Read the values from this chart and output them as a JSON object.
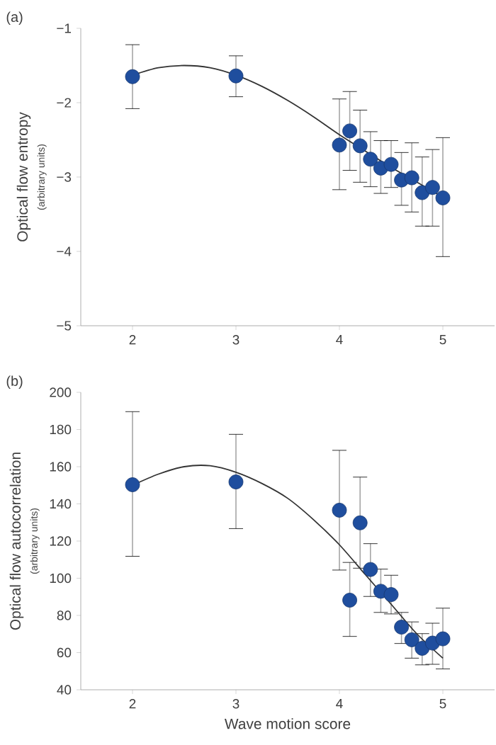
{
  "chart_data": [
    {
      "type": "scatter",
      "ylabel": "Optical flow entropy",
      "annotations": [
        "(a)",
        "(arbitrary units)"
      ],
      "xlim": [
        1.5,
        5.5
      ],
      "xticks": [
        2,
        3,
        4,
        5
      ],
      "ylim": [
        -5,
        -1
      ],
      "yticks": [
        {
          "value": -5,
          "label": "−5"
        },
        {
          "value": -4,
          "label": "−4"
        },
        {
          "value": -3,
          "label": "−3"
        },
        {
          "value": -2,
          "label": "−2"
        },
        {
          "value": -1,
          "label": "−1"
        }
      ],
      "series": [
        {
          "marker": "circle",
          "color": "#1f4e9e",
          "x": [
            2,
            3,
            4.0,
            4.1,
            4.2,
            4.3,
            4.4,
            4.5,
            4.6,
            4.7,
            4.8,
            4.9,
            5.0
          ],
          "values": [
            -1.65,
            -1.64,
            -2.57,
            -2.38,
            -2.58,
            -2.76,
            -2.88,
            -2.83,
            -3.04,
            -3.01,
            -3.21,
            -3.14,
            -3.28
          ],
          "errors": [
            [
              -2.08,
              -1.22
            ],
            [
              -1.92,
              -1.37
            ],
            [
              -3.17,
              -1.95
            ],
            [
              -2.91,
              -1.85
            ],
            [
              -3.07,
              -2.1
            ],
            [
              -3.13,
              -2.39
            ],
            [
              -3.22,
              -2.51
            ],
            [
              -3.14,
              -2.51
            ],
            [
              -3.38,
              -2.67
            ],
            [
              -3.47,
              -2.54
            ],
            [
              -3.66,
              -2.73
            ],
            [
              -3.66,
              -2.63
            ],
            [
              -4.07,
              -2.47
            ]
          ]
        },
        {
          "type": "line",
          "marker": "none",
          "color": "#333333",
          "line_style": "solid",
          "x": [
            2,
            2.25,
            2.5,
            2.75,
            3,
            3.25,
            3.5,
            3.75,
            4,
            4.25,
            4.5,
            4.75,
            5
          ],
          "values": [
            -1.63,
            -1.53,
            -1.5,
            -1.53,
            -1.63,
            -1.78,
            -1.97,
            -2.19,
            -2.43,
            -2.65,
            -2.87,
            -3.07,
            -3.27
          ]
        }
      ]
    },
    {
      "type": "scatter",
      "xlabel": "Wave motion score",
      "ylabel": "Optical flow autocorrelation",
      "annotations": [
        "(b)",
        "(arbitrary units)"
      ],
      "xlim": [
        1.5,
        5.5
      ],
      "xticks": [
        2,
        3,
        4,
        5
      ],
      "ylim": [
        40,
        200
      ],
      "yticks": [
        40,
        60,
        80,
        100,
        120,
        140,
        160,
        180,
        200
      ],
      "series": [
        {
          "marker": "circle",
          "color": "#1f4e9e",
          "x": [
            2,
            3,
            4.0,
            4.1,
            4.2,
            4.3,
            4.4,
            4.5,
            4.6,
            4.7,
            4.8,
            4.9,
            5.0
          ],
          "values": [
            150.3,
            151.8,
            136.6,
            88.2,
            129.8,
            104.7,
            93.0,
            91.2,
            73.7,
            66.9,
            62.3,
            65.1,
            67.4
          ],
          "errors": [
            [
              111.8,
              189.6
            ],
            [
              126.7,
              177.4
            ],
            [
              104.4,
              168.8
            ],
            [
              68.7,
              108.5
            ],
            [
              105.4,
              154.4
            ],
            [
              90.2,
              118.6
            ],
            [
              81.6,
              104.9
            ],
            [
              80.8,
              101.6
            ],
            [
              64.9,
              81.6
            ],
            [
              57.0,
              76.5
            ],
            [
              53.4,
              70.2
            ],
            [
              53.7,
              75.8
            ],
            [
              51.2,
              83.9
            ]
          ]
        },
        {
          "type": "line",
          "marker": "none",
          "color": "#333333",
          "line_style": "solid",
          "x": [
            2,
            2.25,
            2.5,
            2.75,
            3,
            3.25,
            3.5,
            3.75,
            4,
            4.25,
            4.5,
            4.75,
            5
          ],
          "values": [
            150,
            156,
            160,
            160.5,
            157,
            151,
            143,
            131.5,
            118,
            102,
            86,
            70,
            57
          ]
        }
      ]
    }
  ]
}
